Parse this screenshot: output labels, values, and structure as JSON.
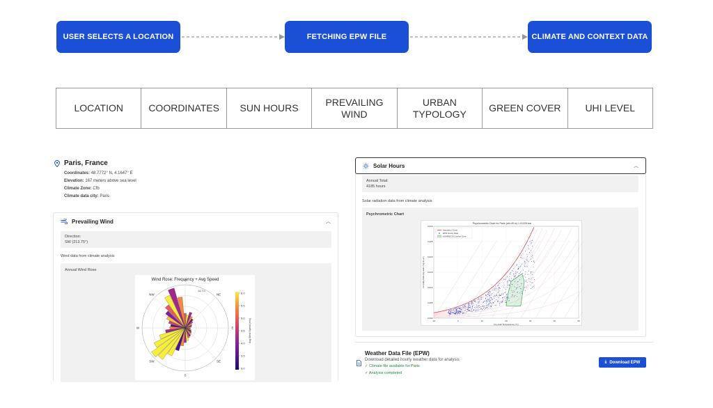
{
  "flow": {
    "steps": [
      "USER SELECTS A LOCATION",
      "FETCHING EPW FILE",
      "CLIMATE AND CONTEXT DATA"
    ],
    "color": "#1b4fd6"
  },
  "categories": [
    "LOCATION",
    "COORDINATES",
    "SUN HOURS",
    "PREVAILING\nWIND",
    "URBAN\nTYPOLOGY",
    "GREEN COVER",
    "UHI LEVEL"
  ],
  "location": {
    "title": "Paris, France",
    "coord_label": "Coordinates:",
    "coord_value": "48.7772° N, 4.1647° E",
    "elev_label": "Elevation:",
    "elev_value": "167 meters above sea level",
    "zone_label": "Climate Zone:",
    "zone_value": "Cfb",
    "city_label": "Climate data city:",
    "city_value": "Paris"
  },
  "wind_panel": {
    "title": "Prevailing Wind",
    "direction_label": "Direction:",
    "direction_value": "SW (213.75°)",
    "note": "Wind data from climate analysis",
    "rose_title": "Annual Wind Rose",
    "chart_title": "Wind Rose: Frequency + Avg Speed",
    "compass": [
      "N",
      "NE",
      "E",
      "SE",
      "S",
      "SW",
      "W",
      "NW"
    ],
    "ring_label": "14.7 h",
    "cbar_label": "Avg Wind Speed (m/s)",
    "cbar_ticks": [
      "6.0",
      "5.5",
      "5.0",
      "4.5",
      "4.0",
      "3.5",
      "3.0"
    ]
  },
  "solar_panel": {
    "title": "Solar Hours",
    "annual_label": "Annual Total:",
    "annual_value": "4185 hours",
    "note": "Solar radiation data from climate analysis",
    "psy_label": "Psychrometric Chart",
    "psy_title": "Psychrometric Chart for Paris (alt=49 m) 1.01325 bar",
    "psy_legend": [
      "Saturation Curve",
      "EPW Hourly Data",
      "ASHRAE 55 Comfort Zone"
    ],
    "psy_xlabel": "Dry-bulb Temperature (°C)",
    "psy_ylabel": "Humidity Ratio (kg water / kg dry air)",
    "x_ticks": [
      "-10",
      "0",
      "10",
      "20",
      "30",
      "40",
      "50"
    ],
    "y_ticks": [
      "0.000",
      "0.005",
      "0.010",
      "0.015",
      "0.020",
      "0.025",
      "0.030"
    ]
  },
  "epw": {
    "title": "Weather Data File (EPW)",
    "subtitle": "Download detailed hourly weather data for analysis",
    "check1": "✓ Climate file available for Paris",
    "check2": "✓ Analysis completed",
    "button": "Download EPW"
  },
  "chart_data": [
    {
      "type": "bar",
      "subtype": "polar",
      "title": "Wind Rose: Frequency + Avg Speed",
      "categories": [
        "N",
        "NE",
        "E",
        "SE",
        "S",
        "SW",
        "W",
        "NW"
      ],
      "colorbar_label": "Avg Wind Speed (m/s)",
      "colorbar_range": [
        3.0,
        6.0
      ]
    },
    {
      "type": "scatter",
      "title": "Psychrometric Chart for Paris (alt=49 m) 1.01325 bar",
      "xlabel": "Dry-bulb Temperature (°C)",
      "ylabel": "Humidity Ratio (kg water / kg dry air)",
      "xlim": [
        -10,
        50
      ],
      "ylim": [
        0.0,
        0.03
      ],
      "series": [
        {
          "name": "Saturation Curve"
        },
        {
          "name": "EPW Hourly Data"
        },
        {
          "name": "ASHRAE 55 Comfort Zone"
        }
      ]
    }
  ]
}
